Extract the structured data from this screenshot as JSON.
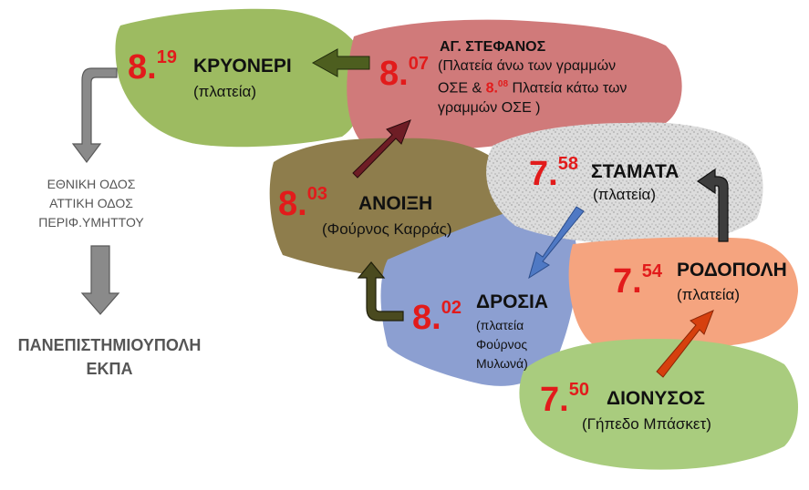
{
  "stops": [
    {
      "id": "kryoneri",
      "hour": "8.",
      "minute": "19",
      "name": "ΚΡΥΟΝΕΡΙ",
      "detail": "(πλατεία)"
    },
    {
      "id": "ag-stefanos",
      "hour": "8.",
      "minute": "07",
      "name": "ΑΓ. ΣΤΕΦΑΝΟΣ",
      "detail_line1": "(Πλατεία άνω των γραμμών",
      "detail_line2_a": "ΟΣΕ & ",
      "detail_line2_time_h": "8.",
      "detail_line2_time_m": "08",
      "detail_line2_b": " Πλατεία κάτω των",
      "detail_line3": "γραμμών ΟΣΕ  )"
    },
    {
      "id": "anoixi",
      "hour": "8.",
      "minute": "03",
      "name": "ΑΝΟΙΞΗ",
      "detail": "(Φούρνος Καρράς)"
    },
    {
      "id": "stamata",
      "hour": "7.",
      "minute": "58",
      "name": "ΣΤΑΜΑΤΑ",
      "detail": "(πλατεία)"
    },
    {
      "id": "drosia",
      "hour": "8.",
      "minute": "02",
      "name": "ΔΡΟΣΙΑ",
      "detail_line1": "(πλατεία",
      "detail_line2": "Φούρνος",
      "detail_line3": "Μυλωνά)"
    },
    {
      "id": "rodopoli",
      "hour": "7.",
      "minute": "54",
      "name": "ΡΟΔΟΠΟΛΗ",
      "detail": "(πλατεία)"
    },
    {
      "id": "dionysos",
      "hour": "7.",
      "minute": "50",
      "name": "ΔΙΟΝΥΣΟΣ",
      "detail": "(Γήπεδο Μπάσκετ)"
    }
  ],
  "route_via": [
    "ΕΘΝΙΚΗ ΟΔΟΣ",
    "ΑΤΤΙΚΗ ΟΔΟΣ",
    "ΠΕΡΙΦ.ΥΜΗΤΤΟΥ"
  ],
  "destination": [
    "ΠΑΝΕΠΙΣΤΗΜΙΟΥΠΟΛΗ",
    "ΕΚΠΑ"
  ],
  "colors": {
    "kryoneri": "#9dbb61",
    "ag-stefanos": "#d07a7a",
    "anoixi": "#8e7d4c",
    "stamata": "#d9d9d9",
    "drosia": "#8c9fd1",
    "rodopoli": "#f5a47f",
    "dionysos": "#a9cc7e",
    "time": "#e21b1b",
    "gray_arrow": "#8a8a8a"
  }
}
